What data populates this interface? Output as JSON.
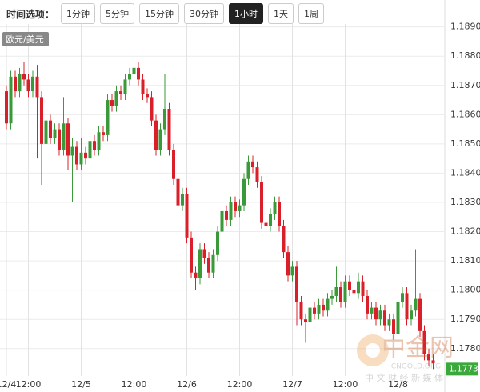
{
  "toolbar": {
    "label": "时间选项：",
    "buttons": [
      {
        "label": "1分钟"
      },
      {
        "label": "5分钟"
      },
      {
        "label": "15分钟"
      },
      {
        "label": "30分钟"
      },
      {
        "label": "1小时",
        "active": true
      },
      {
        "label": "1天"
      },
      {
        "label": "1周"
      }
    ]
  },
  "chart_data": {
    "type": "candlestick",
    "symbol": "欧元/美元",
    "up_color": "#3a9a3a",
    "down_color": "#d9202a",
    "categories": [
      "12/4",
      null,
      null,
      null,
      null,
      "12:00",
      null,
      null,
      null,
      null,
      null,
      null,
      null,
      null,
      null,
      null,
      null,
      "12/5",
      null,
      null,
      null,
      null,
      null,
      null,
      null,
      null,
      null,
      null,
      null,
      "12:00",
      null,
      null,
      null,
      null,
      null,
      null,
      null,
      null,
      null,
      null,
      null,
      "12/6",
      null,
      null,
      null,
      null,
      null,
      null,
      null,
      null,
      null,
      null,
      null,
      "12:00",
      null,
      null,
      null,
      null,
      null,
      null,
      null,
      null,
      null,
      null,
      null,
      "12/7",
      null,
      null,
      null,
      null,
      null,
      null,
      null,
      null,
      null,
      null,
      null,
      "12:00",
      null,
      null,
      null,
      null,
      null,
      null,
      null,
      null,
      null,
      null,
      null,
      "12/8",
      null,
      null,
      null,
      null,
      null,
      null,
      null,
      null
    ],
    "open": [
      1.1868,
      1.1857,
      1.1873,
      1.1868,
      1.1874,
      1.1872,
      1.1868,
      1.1873,
      1.1866,
      1.185,
      1.1858,
      1.1852,
      1.1855,
      1.1848,
      1.1857,
      1.1846,
      1.1849,
      1.1843,
      1.1847,
      1.1845,
      1.1851,
      1.1848,
      1.1854,
      1.1853,
      1.1865,
      1.1863,
      1.1868,
      1.1867,
      1.1872,
      1.1874,
      1.1876,
      1.1872,
      1.1867,
      1.1866,
      1.1858,
      1.1848,
      1.1855,
      1.1862,
      1.1848,
      1.1838,
      1.1829,
      1.1833,
      1.1818,
      1.1806,
      1.1804,
      1.1814,
      1.1811,
      1.1806,
      1.1812,
      1.182,
      1.1827,
      1.1824,
      1.183,
      1.1827,
      1.1829,
      1.1838,
      1.1844,
      1.1842,
      1.1837,
      1.1823,
      1.1822,
      1.1826,
      1.183,
      1.1822,
      1.1813,
      1.1805,
      1.1808,
      1.1796,
      1.179,
      1.1789,
      1.1794,
      1.1792,
      1.1795,
      1.1793,
      1.1797,
      1.1798,
      1.1801,
      1.1796,
      1.1803,
      1.18,
      1.1799,
      1.1803,
      1.1798,
      1.1792,
      1.1794,
      1.179,
      1.1793,
      1.1788,
      1.179,
      1.1785,
      1.1796,
      1.1799,
      1.179,
      1.1793,
      1.1797,
      1.1786,
      1.1778,
      1.1776
    ],
    "high": [
      1.187,
      1.1875,
      1.1875,
      1.1876,
      1.1878,
      1.1874,
      1.1875,
      1.1877,
      1.1868,
      1.1877,
      1.186,
      1.1857,
      1.1857,
      1.1866,
      1.1859,
      1.1852,
      1.1851,
      1.1852,
      1.1849,
      1.1853,
      1.1853,
      1.1856,
      1.1856,
      1.1867,
      1.1867,
      1.187,
      1.187,
      1.1874,
      1.1876,
      1.1878,
      1.1878,
      1.1874,
      1.1869,
      1.1868,
      1.186,
      1.1857,
      1.1874,
      1.1864,
      1.185,
      1.184,
      1.1835,
      1.1835,
      1.182,
      1.1808,
      1.1816,
      1.1816,
      1.1813,
      1.1814,
      1.1822,
      1.1829,
      1.1829,
      1.1832,
      1.1832,
      1.1831,
      1.184,
      1.1846,
      1.1846,
      1.1844,
      1.1839,
      1.1825,
      1.1828,
      1.1832,
      1.1832,
      1.1824,
      1.1815,
      1.181,
      1.181,
      1.1798,
      1.1792,
      1.1796,
      1.1796,
      1.1797,
      1.1797,
      1.1799,
      1.18,
      1.1808,
      1.1803,
      1.1805,
      1.1805,
      1.1802,
      1.1806,
      1.1805,
      1.18,
      1.1796,
      1.1796,
      1.1795,
      1.1795,
      1.1792,
      1.1792,
      1.18,
      1.1801,
      1.1801,
      1.1795,
      1.1814,
      1.1799,
      1.1788,
      1.178,
      1.1778
    ],
    "low": [
      1.1855,
      1.1855,
      1.1866,
      1.1866,
      1.187,
      1.1866,
      1.1866,
      1.1845,
      1.1836,
      1.1848,
      1.185,
      1.185,
      1.1846,
      1.1846,
      1.1841,
      1.183,
      1.1841,
      1.1841,
      1.1843,
      1.1843,
      1.1846,
      1.1846,
      1.1851,
      1.1851,
      1.1861,
      1.1861,
      1.1865,
      1.1865,
      1.187,
      1.1872,
      1.187,
      1.1865,
      1.1864,
      1.1856,
      1.1846,
      1.1846,
      1.1853,
      1.1846,
      1.1836,
      1.1827,
      1.1827,
      1.1816,
      1.1804,
      1.18,
      1.1802,
      1.1809,
      1.1804,
      1.1804,
      1.181,
      1.1818,
      1.1822,
      1.1822,
      1.1825,
      1.1825,
      1.1827,
      1.1836,
      1.184,
      1.1835,
      1.1821,
      1.182,
      1.182,
      1.1824,
      1.182,
      1.1811,
      1.1803,
      1.1803,
      1.1788,
      1.1788,
      1.1782,
      1.1787,
      1.179,
      1.179,
      1.1791,
      1.1791,
      1.1795,
      1.1796,
      1.1794,
      1.1794,
      1.1798,
      1.1797,
      1.1797,
      1.1796,
      1.179,
      1.179,
      1.1788,
      1.1788,
      1.1786,
      1.1786,
      1.1783,
      1.1783,
      1.1794,
      1.1788,
      1.1788,
      1.1791,
      1.1784,
      1.1776,
      1.1774,
      1.1773
    ],
    "close": [
      1.1857,
      1.1873,
      1.1868,
      1.1874,
      1.1872,
      1.1868,
      1.1873,
      1.1866,
      1.185,
      1.1858,
      1.1852,
      1.1855,
      1.1848,
      1.1857,
      1.1846,
      1.1849,
      1.1843,
      1.1847,
      1.1845,
      1.1851,
      1.1848,
      1.1854,
      1.1853,
      1.1865,
      1.1863,
      1.1868,
      1.1867,
      1.1872,
      1.1874,
      1.1876,
      1.1872,
      1.1867,
      1.1866,
      1.1858,
      1.1848,
      1.1855,
      1.1862,
      1.1848,
      1.1838,
      1.1829,
      1.1833,
      1.1818,
      1.1806,
      1.1804,
      1.1814,
      1.1811,
      1.1806,
      1.1812,
      1.182,
      1.1827,
      1.1824,
      1.183,
      1.1827,
      1.1829,
      1.1838,
      1.1844,
      1.1842,
      1.1837,
      1.1823,
      1.1822,
      1.1826,
      1.183,
      1.1822,
      1.1813,
      1.1805,
      1.1808,
      1.1796,
      1.179,
      1.1789,
      1.1794,
      1.1792,
      1.1795,
      1.1793,
      1.1797,
      1.1798,
      1.1801,
      1.1796,
      1.1803,
      1.18,
      1.1799,
      1.1803,
      1.1798,
      1.1792,
      1.1794,
      1.179,
      1.1793,
      1.1788,
      1.179,
      1.1785,
      1.1796,
      1.1799,
      1.179,
      1.1793,
      1.1797,
      1.1786,
      1.1778,
      1.1776,
      1.1775
    ],
    "last_price": 1.1773,
    "ylim": [
      1.1772,
      1.1891
    ],
    "yticks": [
      {
        "value": 1.178,
        "label": "1.1780"
      },
      {
        "value": 1.179,
        "label": "1.1790"
      },
      {
        "value": 1.18,
        "label": "1.1800"
      },
      {
        "value": 1.181,
        "label": "1.1810"
      },
      {
        "value": 1.182,
        "label": "1.1820"
      },
      {
        "value": 1.183,
        "label": "1.1830"
      },
      {
        "value": 1.184,
        "label": "1.1840"
      },
      {
        "value": 1.185,
        "label": "1.1850"
      },
      {
        "value": 1.186,
        "label": "1.1860"
      },
      {
        "value": 1.187,
        "label": "1.1870"
      },
      {
        "value": 1.188,
        "label": "1.1880"
      },
      {
        "value": 1.189,
        "label": "1.1890"
      }
    ],
    "grid": true
  },
  "watermark": {
    "brand": "中金网",
    "site": "CNGOLD.ORG",
    "slogan": "中 文 财 经 新 媒 体"
  }
}
